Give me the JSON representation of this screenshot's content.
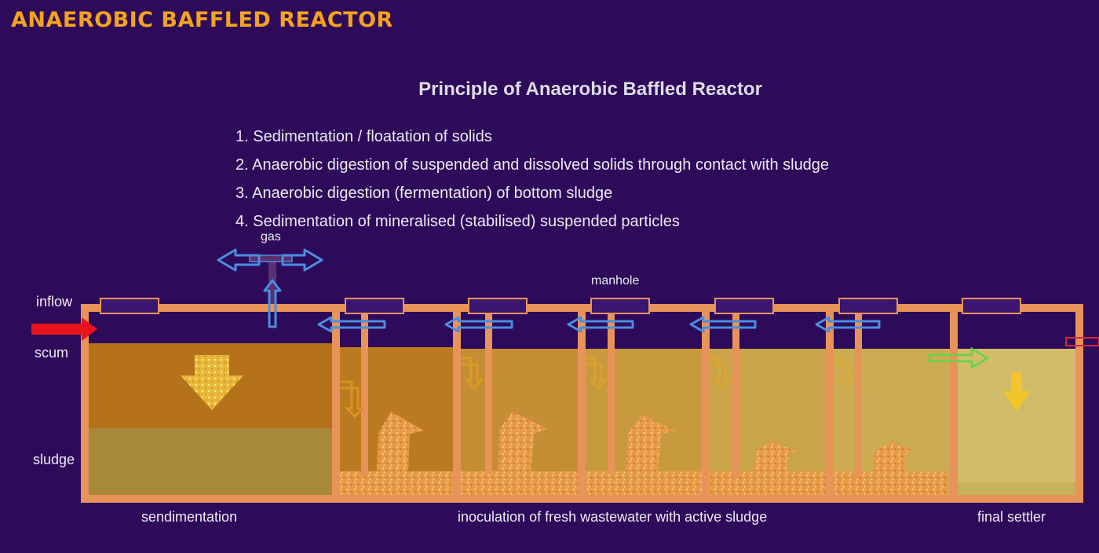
{
  "header": {
    "title": "ANAEROBIC BAFFLED REACTOR"
  },
  "diagram": {
    "title": "Principle of Anaerobic Baffled Reactor",
    "steps": [
      "1. Sedimentation / floatation of solids",
      "2. Anaerobic digestion of suspended and dissolved solids through contact with sludge",
      "3. Anaerobic digestion (fermentation) of bottom sludge",
      "4. Sedimentation of mineralised (stabilised) suspended particles"
    ],
    "labels": {
      "gas": "gas",
      "manhole": "manhole",
      "inflow": "inflow",
      "scum": "scum",
      "sludge": "sludge",
      "sedimentation": "sendimentation",
      "inoculation": "inoculation of fresh  wastewater with active sludge",
      "final_settler": "final settler"
    },
    "colors": {
      "background": "#2e0b5a",
      "header": "#f4a31e",
      "tank_wall": "#e8935a",
      "inflow_arrow": "#e8141a",
      "gas_arrow": "#4a8ee0",
      "outflow_arrow": "#5fd64a"
    }
  }
}
